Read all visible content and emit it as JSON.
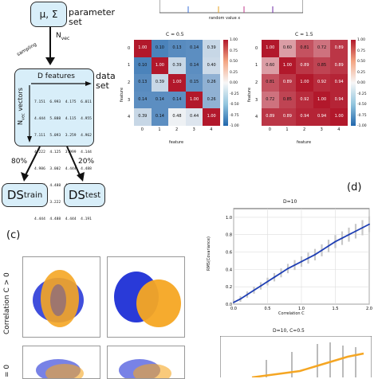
{
  "flow": {
    "param_box": {
      "text": "μ, Σ"
    },
    "param_label": [
      "parameter",
      "set"
    ],
    "nvec": "N",
    "nvec_sub": "vec",
    "sampling": "sampling",
    "dataset_box_header": "D features",
    "dataset_label": [
      "data",
      "set"
    ],
    "yaxis_label": "N",
    "yaxis_label_sub": "vec",
    "yaxis_label_suffix": " vectors",
    "matrix_rows": [
      "7.151  6.993  4.175  6.011",
      "4.444  5.888  4.115  4.955",
      "7.111  5.093  3.259  4.962",
      "4.222  4.125  3.999  4.144",
      "4.986  3.002  4.444  4.488",
      "4.095  4.488  4.999  4.189",
      "4.988  3.222  4.444  4.181",
      "4.444  4.488  4.444  4.191"
    ],
    "split_left": "80%",
    "split_right": "20%",
    "ds_train": "DS",
    "ds_train_sub": "train",
    "ds_test": "DS",
    "ds_test_sub": "test"
  },
  "top_strip": {
    "xlabel": "random value x",
    "lines": [
      "#3a6fd8",
      "#e6a020",
      "#c23b8c",
      "#6c2aa6"
    ]
  },
  "heatmaps": {
    "left": {
      "title": "C = 0.5",
      "xlabel": "feature",
      "ylabel": "feature",
      "ticks": [
        "0",
        "1",
        "2",
        "3",
        "4"
      ],
      "values": [
        [
          "1.00",
          "0.10",
          "0.13",
          "0.14",
          "0.39"
        ],
        [
          "0.10",
          "1.00",
          "0.39",
          "0.14",
          "0.40"
        ],
        [
          "0.13",
          "0.39",
          "1.00",
          "0.15",
          "0.26"
        ],
        [
          "0.14",
          "0.14",
          "0.14",
          "1.00",
          "0.26"
        ],
        [
          "0.39",
          "0.14",
          "0.48",
          "0.44",
          "1.00"
        ]
      ],
      "colorbar_ticks": [
        "1.00",
        "0.75",
        "0.50",
        "0.25",
        "0.00",
        "-0.25",
        "-0.50",
        "-0.75",
        "-1.00"
      ]
    },
    "right": {
      "title": "C = 1.5",
      "xlabel": "feature",
      "ylabel": "feature",
      "ticks": [
        "0",
        "1",
        "2",
        "3",
        "4"
      ],
      "values": [
        [
          "1.00",
          "0.60",
          "0.81",
          "0.72",
          "0.89"
        ],
        [
          "0.60",
          "1.00",
          "0.89",
          "0.85",
          "0.89"
        ],
        [
          "0.81",
          "0.89",
          "1.00",
          "0.92",
          "0.94"
        ],
        [
          "0.72",
          "0.85",
          "0.92",
          "1.00",
          "0.94"
        ],
        [
          "0.89",
          "0.89",
          "0.94",
          "0.94",
          "1.00"
        ]
      ],
      "colorbar_ticks": [
        "1.00",
        "0.75",
        "0.50",
        "0.25",
        "0.00",
        "-0.25",
        "-0.50",
        "-0.75",
        "-1.00"
      ]
    }
  },
  "panel_d": {
    "label": "(d)",
    "title": "D=10",
    "xlabel": "Correlation C",
    "ylabel": "RMS(Covariance)",
    "xticks": [
      "0.0",
      "0.5",
      "1.0",
      "1.5",
      "2.0"
    ],
    "yticks": [
      "0.0",
      "0.2",
      "0.4",
      "0.6",
      "0.8",
      "1.0"
    ]
  },
  "panel_c": {
    "label": "(c)",
    "row1_label": "Correlation C > 0",
    "row2_label": "= 0"
  },
  "panel_e": {
    "title": "D=10, C=0.5"
  },
  "chart_data": [
    {
      "type": "line",
      "title": "D=10",
      "xlabel": "Correlation C",
      "ylabel": "RMS(Covariance)",
      "xlim": [
        0,
        2
      ],
      "ylim": [
        0,
        1.1
      ],
      "series": [
        {
          "x": [
            0.0,
            0.1,
            0.2,
            0.3,
            0.4,
            0.5,
            0.6,
            0.7,
            0.8,
            0.9,
            1.0,
            1.1,
            1.2,
            1.3,
            1.4,
            1.5,
            1.6,
            1.7,
            1.8,
            1.9,
            2.0
          ],
          "values": [
            0.02,
            0.06,
            0.11,
            0.16,
            0.21,
            0.26,
            0.31,
            0.36,
            0.41,
            0.45,
            0.49,
            0.53,
            0.57,
            0.62,
            0.67,
            0.72,
            0.76,
            0.8,
            0.84,
            0.88,
            0.92
          ],
          "color": "#1f3fb4"
        }
      ],
      "grid": true
    }
  ]
}
